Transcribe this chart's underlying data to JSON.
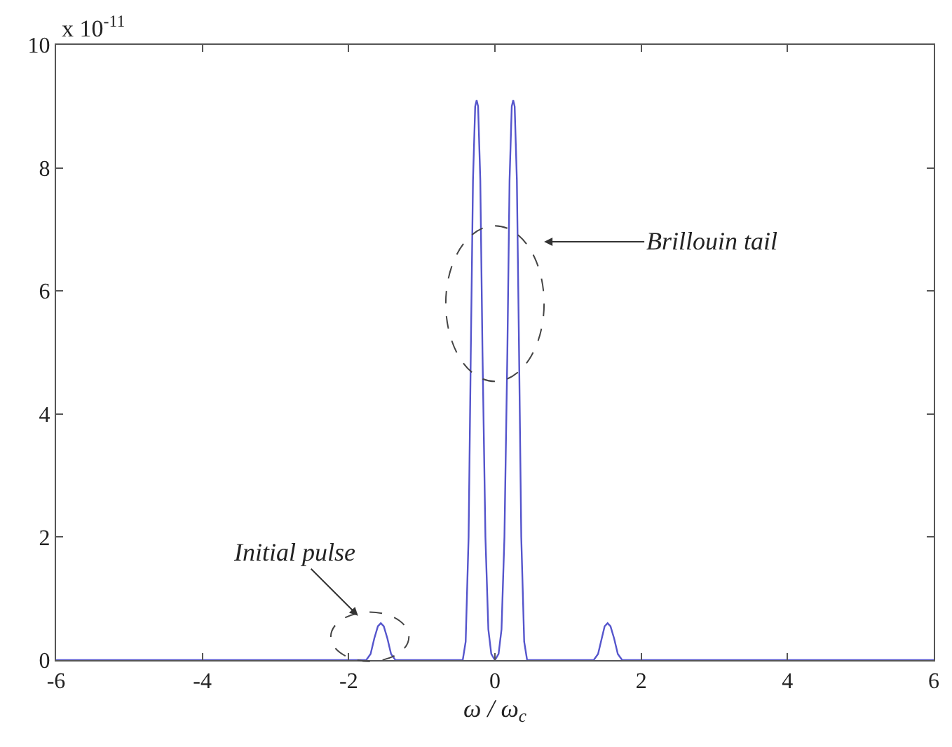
{
  "chart_data": {
    "type": "line",
    "xlabel": "ω / ω$_{c}$",
    "ylabel": "x 10$^{-11}$",
    "x": [
      -6,
      -1.76,
      -1.7,
      -1.65,
      -1.6,
      -1.56,
      -1.52,
      -1.47,
      -1.42,
      -1.36,
      -0.44,
      -0.4,
      -0.36,
      -0.33,
      -0.3,
      -0.27,
      -0.25,
      -0.23,
      -0.2,
      -0.17,
      -0.13,
      -0.09,
      -0.05,
      0,
      0.05,
      0.09,
      0.13,
      0.17,
      0.2,
      0.23,
      0.25,
      0.27,
      0.3,
      0.33,
      0.36,
      0.4,
      0.44,
      1.35,
      1.41,
      1.46,
      1.5,
      1.54,
      1.58,
      1.63,
      1.68,
      1.74,
      6
    ],
    "series": [
      {
        "color": "#5555cc",
        "values": [
          0,
          0,
          0.1,
          0.35,
          0.55,
          0.6,
          0.55,
          0.35,
          0.1,
          0,
          0,
          0.3,
          2.0,
          5.0,
          7.8,
          9.0,
          9.1,
          9.0,
          7.8,
          5.0,
          2.0,
          0.5,
          0.1,
          0,
          0.1,
          0.5,
          2.0,
          5.0,
          7.8,
          9.0,
          9.1,
          9.0,
          7.8,
          5.0,
          2.0,
          0.3,
          0,
          0,
          0.1,
          0.35,
          0.55,
          0.6,
          0.55,
          0.35,
          0.1,
          0,
          0
        ]
      }
    ],
    "xlim": [
      -6,
      6
    ],
    "xticks": [
      -6,
      -4,
      -2,
      0,
      2,
      4,
      6
    ],
    "ylim": [
      0,
      10
    ],
    "yticks": [
      0,
      2,
      4,
      6,
      8,
      10
    ],
    "marker": "none",
    "line_style": "solid",
    "annotations": [
      "Initial pulse",
      "Brillouin tail"
    ]
  }
}
